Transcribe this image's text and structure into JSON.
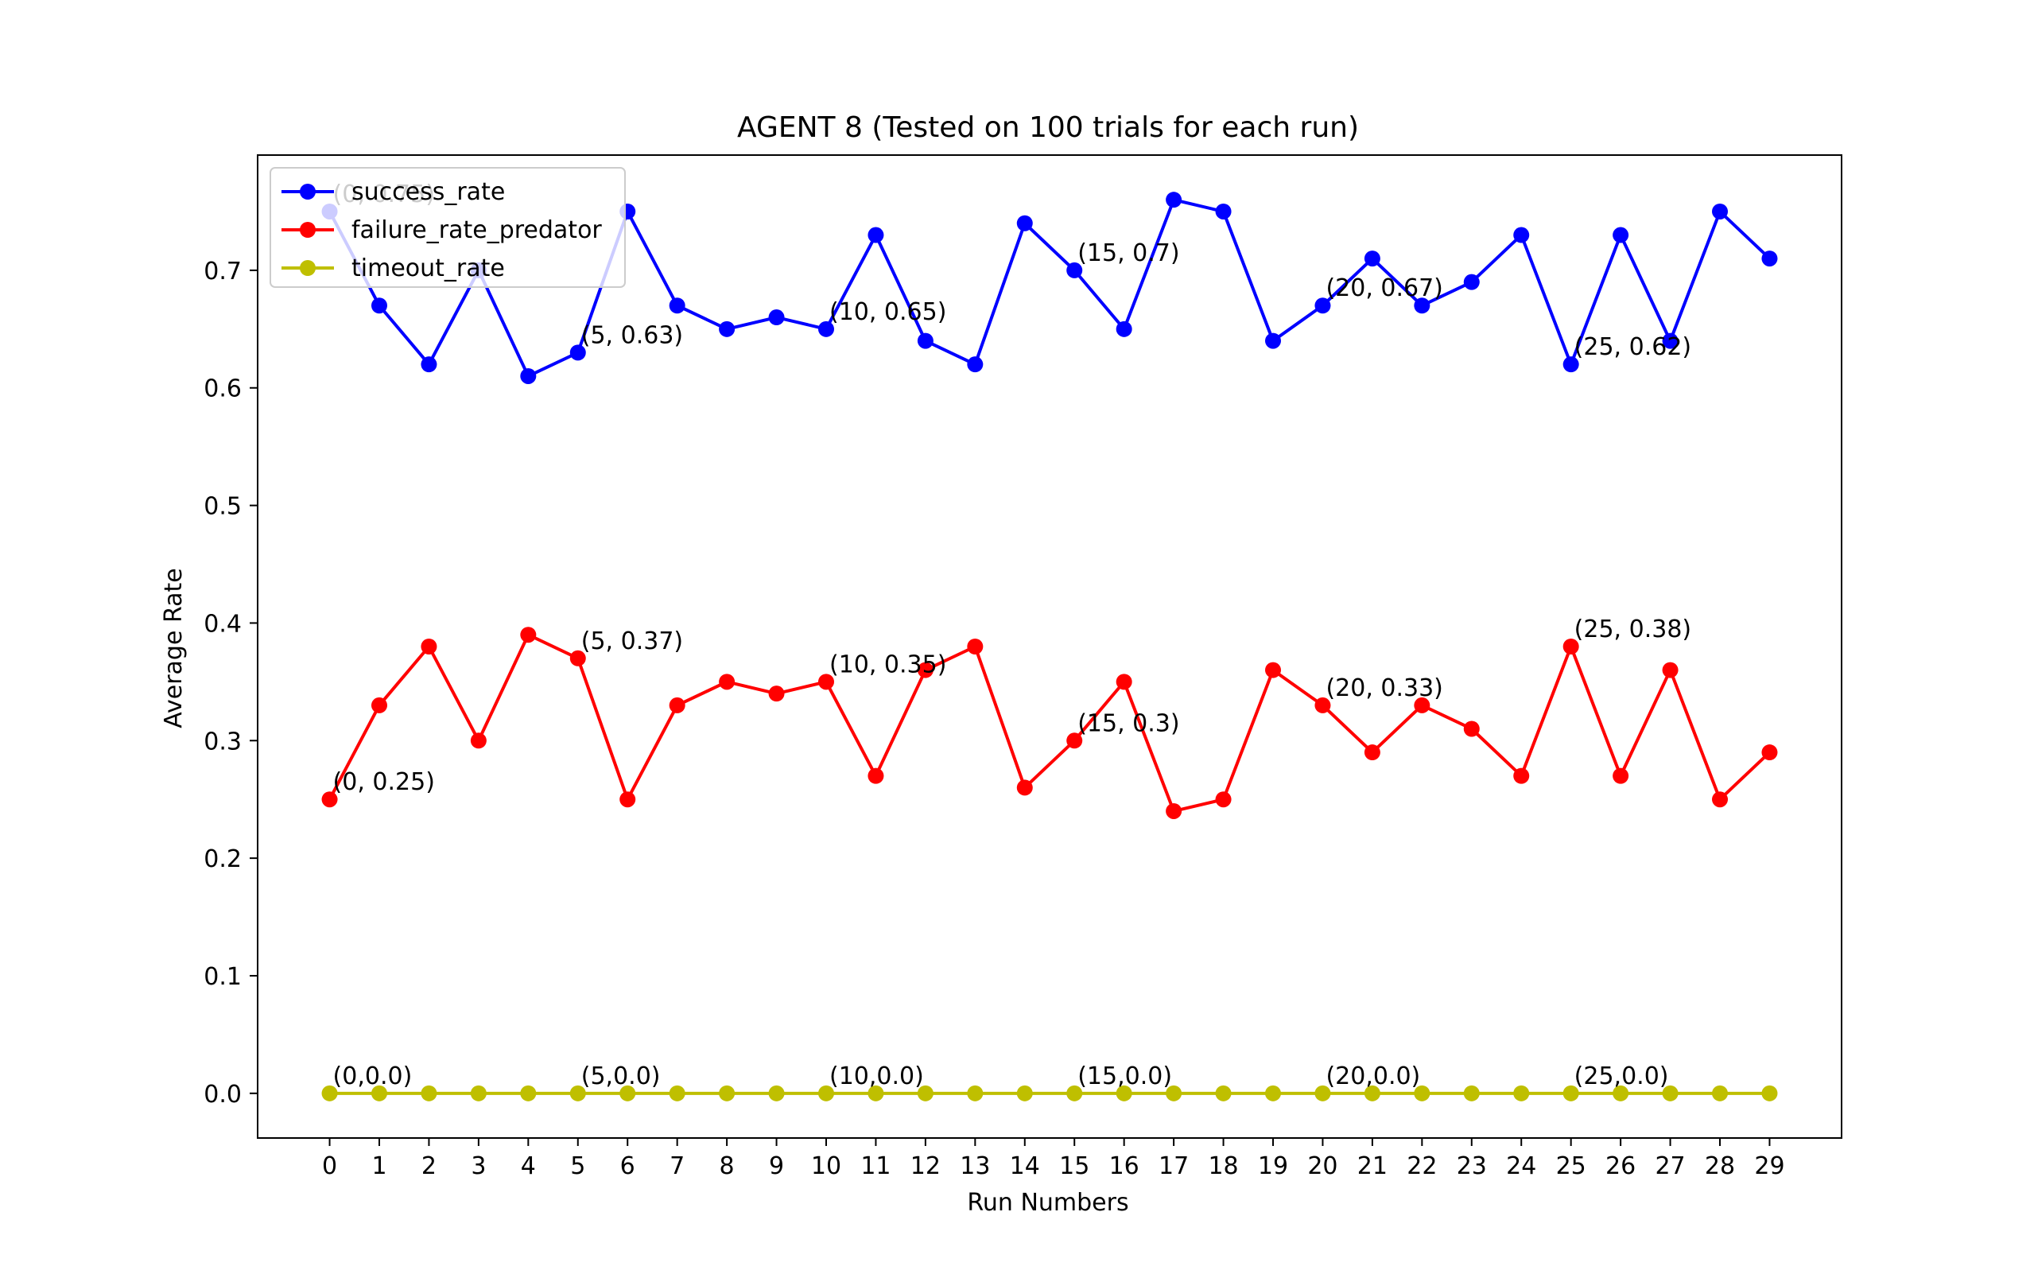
{
  "chart_data": {
    "type": "line",
    "title": "AGENT 8 (Tested on 100 trials for each run)",
    "xlabel": "Run Numbers",
    "ylabel": "Average Rate",
    "x": [
      0,
      1,
      2,
      3,
      4,
      5,
      6,
      7,
      8,
      9,
      10,
      11,
      12,
      13,
      14,
      15,
      16,
      17,
      18,
      19,
      20,
      21,
      22,
      23,
      24,
      25,
      26,
      27,
      28,
      29
    ],
    "xticks": [
      "0",
      "1",
      "2",
      "3",
      "4",
      "5",
      "6",
      "7",
      "8",
      "9",
      "10",
      "11",
      "12",
      "13",
      "14",
      "15",
      "16",
      "17",
      "18",
      "19",
      "20",
      "21",
      "22",
      "23",
      "24",
      "25",
      "26",
      "27",
      "28",
      "29"
    ],
    "yticks": [
      "0.0",
      "0.1",
      "0.2",
      "0.3",
      "0.4",
      "0.5",
      "0.6",
      "0.7"
    ],
    "ylim": [
      -0.038,
      0.798
    ],
    "xlim": [
      -1.45,
      30.45
    ],
    "grid": false,
    "legend_position": "upper-left",
    "series": [
      {
        "name": "success_rate",
        "color": "#0000ff",
        "values": [
          0.75,
          0.67,
          0.62,
          0.7,
          0.61,
          0.63,
          0.75,
          0.67,
          0.65,
          0.66,
          0.65,
          0.73,
          0.64,
          0.62,
          0.74,
          0.7,
          0.65,
          0.76,
          0.75,
          0.64,
          0.67,
          0.71,
          0.67,
          0.69,
          0.73,
          0.62,
          0.73,
          0.64,
          0.75,
          0.71
        ],
        "annotations": [
          {
            "x": 0,
            "y": 0.75,
            "text": "(0, 0.75)"
          },
          {
            "x": 5,
            "y": 0.63,
            "text": "(5, 0.63)"
          },
          {
            "x": 10,
            "y": 0.65,
            "text": "(10, 0.65)"
          },
          {
            "x": 15,
            "y": 0.7,
            "text": "(15, 0.7)"
          },
          {
            "x": 20,
            "y": 0.67,
            "text": "(20, 0.67)"
          },
          {
            "x": 25,
            "y": 0.62,
            "text": "(25, 0.62)"
          }
        ]
      },
      {
        "name": "failure_rate_predator",
        "color": "#ff0000",
        "values": [
          0.25,
          0.33,
          0.38,
          0.3,
          0.39,
          0.37,
          0.25,
          0.33,
          0.35,
          0.34,
          0.35,
          0.27,
          0.36,
          0.38,
          0.26,
          0.3,
          0.35,
          0.24,
          0.25,
          0.36,
          0.33,
          0.29,
          0.33,
          0.31,
          0.27,
          0.38,
          0.27,
          0.36,
          0.25,
          0.29
        ],
        "annotations": [
          {
            "x": 0,
            "y": 0.25,
            "text": "(0, 0.25)"
          },
          {
            "x": 5,
            "y": 0.37,
            "text": "(5, 0.37)"
          },
          {
            "x": 10,
            "y": 0.35,
            "text": "(10, 0.35)"
          },
          {
            "x": 15,
            "y": 0.3,
            "text": "(15, 0.3)"
          },
          {
            "x": 20,
            "y": 0.33,
            "text": "(20, 0.33)"
          },
          {
            "x": 25,
            "y": 0.38,
            "text": "(25, 0.38)"
          }
        ]
      },
      {
        "name": "timeout_rate",
        "color": "#bfbf00",
        "values": [
          0,
          0,
          0,
          0,
          0,
          0,
          0,
          0,
          0,
          0,
          0,
          0,
          0,
          0,
          0,
          0,
          0,
          0,
          0,
          0,
          0,
          0,
          0,
          0,
          0,
          0,
          0,
          0,
          0,
          0
        ],
        "annotations": [
          {
            "x": 0,
            "y": 0.0,
            "text": "(0,0.0)"
          },
          {
            "x": 5,
            "y": 0.0,
            "text": "(5,0.0)"
          },
          {
            "x": 10,
            "y": 0.0,
            "text": "(10,0.0)"
          },
          {
            "x": 15,
            "y": 0.0,
            "text": "(15,0.0)"
          },
          {
            "x": 20,
            "y": 0.0,
            "text": "(20,0.0)"
          },
          {
            "x": 25,
            "y": 0.0,
            "text": "(25,0.0)"
          }
        ]
      }
    ]
  }
}
